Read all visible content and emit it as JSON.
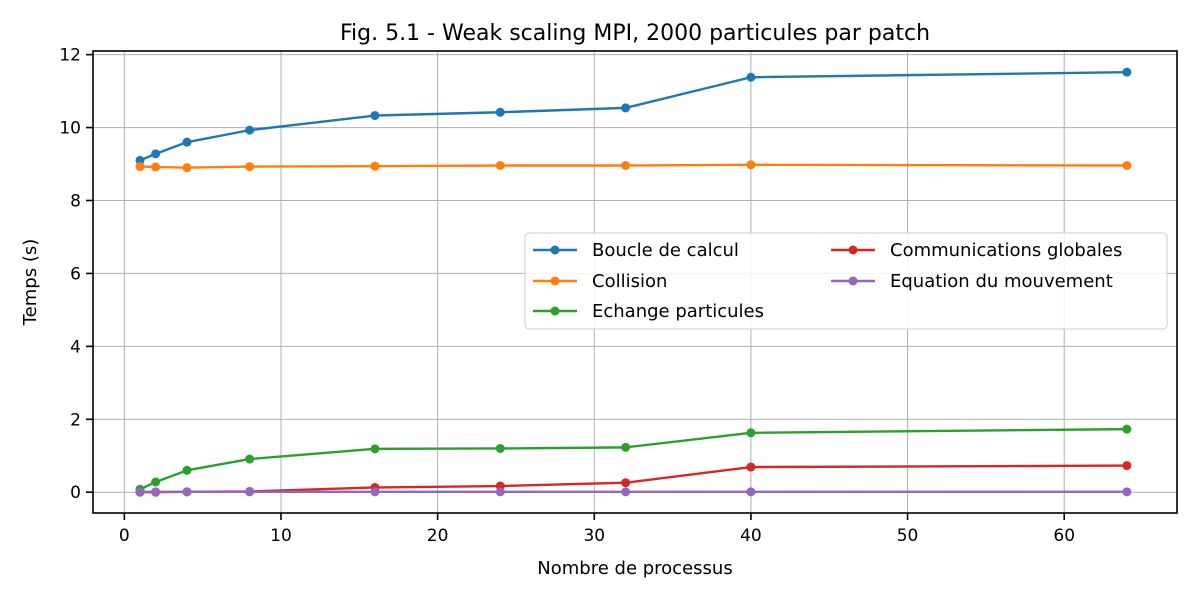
{
  "chart_data": {
    "type": "line",
    "title": "Fig. 5.1 - Weak scaling MPI, 2000 particules par patch",
    "xlabel": "Nombre de processus",
    "ylabel": "Temps (s)",
    "xlim": [
      -2,
      67.2
    ],
    "ylim": [
      -0.57,
      12.1
    ],
    "xticks": [
      0,
      10,
      20,
      30,
      40,
      50,
      60
    ],
    "yticks": [
      0,
      2,
      4,
      6,
      8,
      10,
      12
    ],
    "grid": true,
    "legend_position": "center-right",
    "x": [
      1,
      2,
      4,
      8,
      16,
      24,
      32,
      40,
      64
    ],
    "series": [
      {
        "name": "Boucle de calcul",
        "color": "#1f77b4",
        "values": [
          9.1,
          9.28,
          9.6,
          9.93,
          10.33,
          10.42,
          10.54,
          11.38,
          11.52
        ]
      },
      {
        "name": "Collision",
        "color": "#ff7f0e",
        "values": [
          8.93,
          8.92,
          8.9,
          8.93,
          8.94,
          8.96,
          8.96,
          8.98,
          8.96
        ]
      },
      {
        "name": "Echange particules",
        "color": "#2ca02c",
        "values": [
          0.08,
          0.28,
          0.6,
          0.91,
          1.19,
          1.2,
          1.23,
          1.63,
          1.73
        ]
      },
      {
        "name": "Communications globales",
        "color": "#d62728",
        "values": [
          0.0,
          0.0,
          0.01,
          0.02,
          0.13,
          0.17,
          0.26,
          0.69,
          0.73
        ]
      },
      {
        "name": "Equation du mouvement",
        "color": "#9467bd",
        "values": [
          0.01,
          0.01,
          0.01,
          0.01,
          0.01,
          0.01,
          0.01,
          0.01,
          0.01
        ]
      }
    ]
  }
}
